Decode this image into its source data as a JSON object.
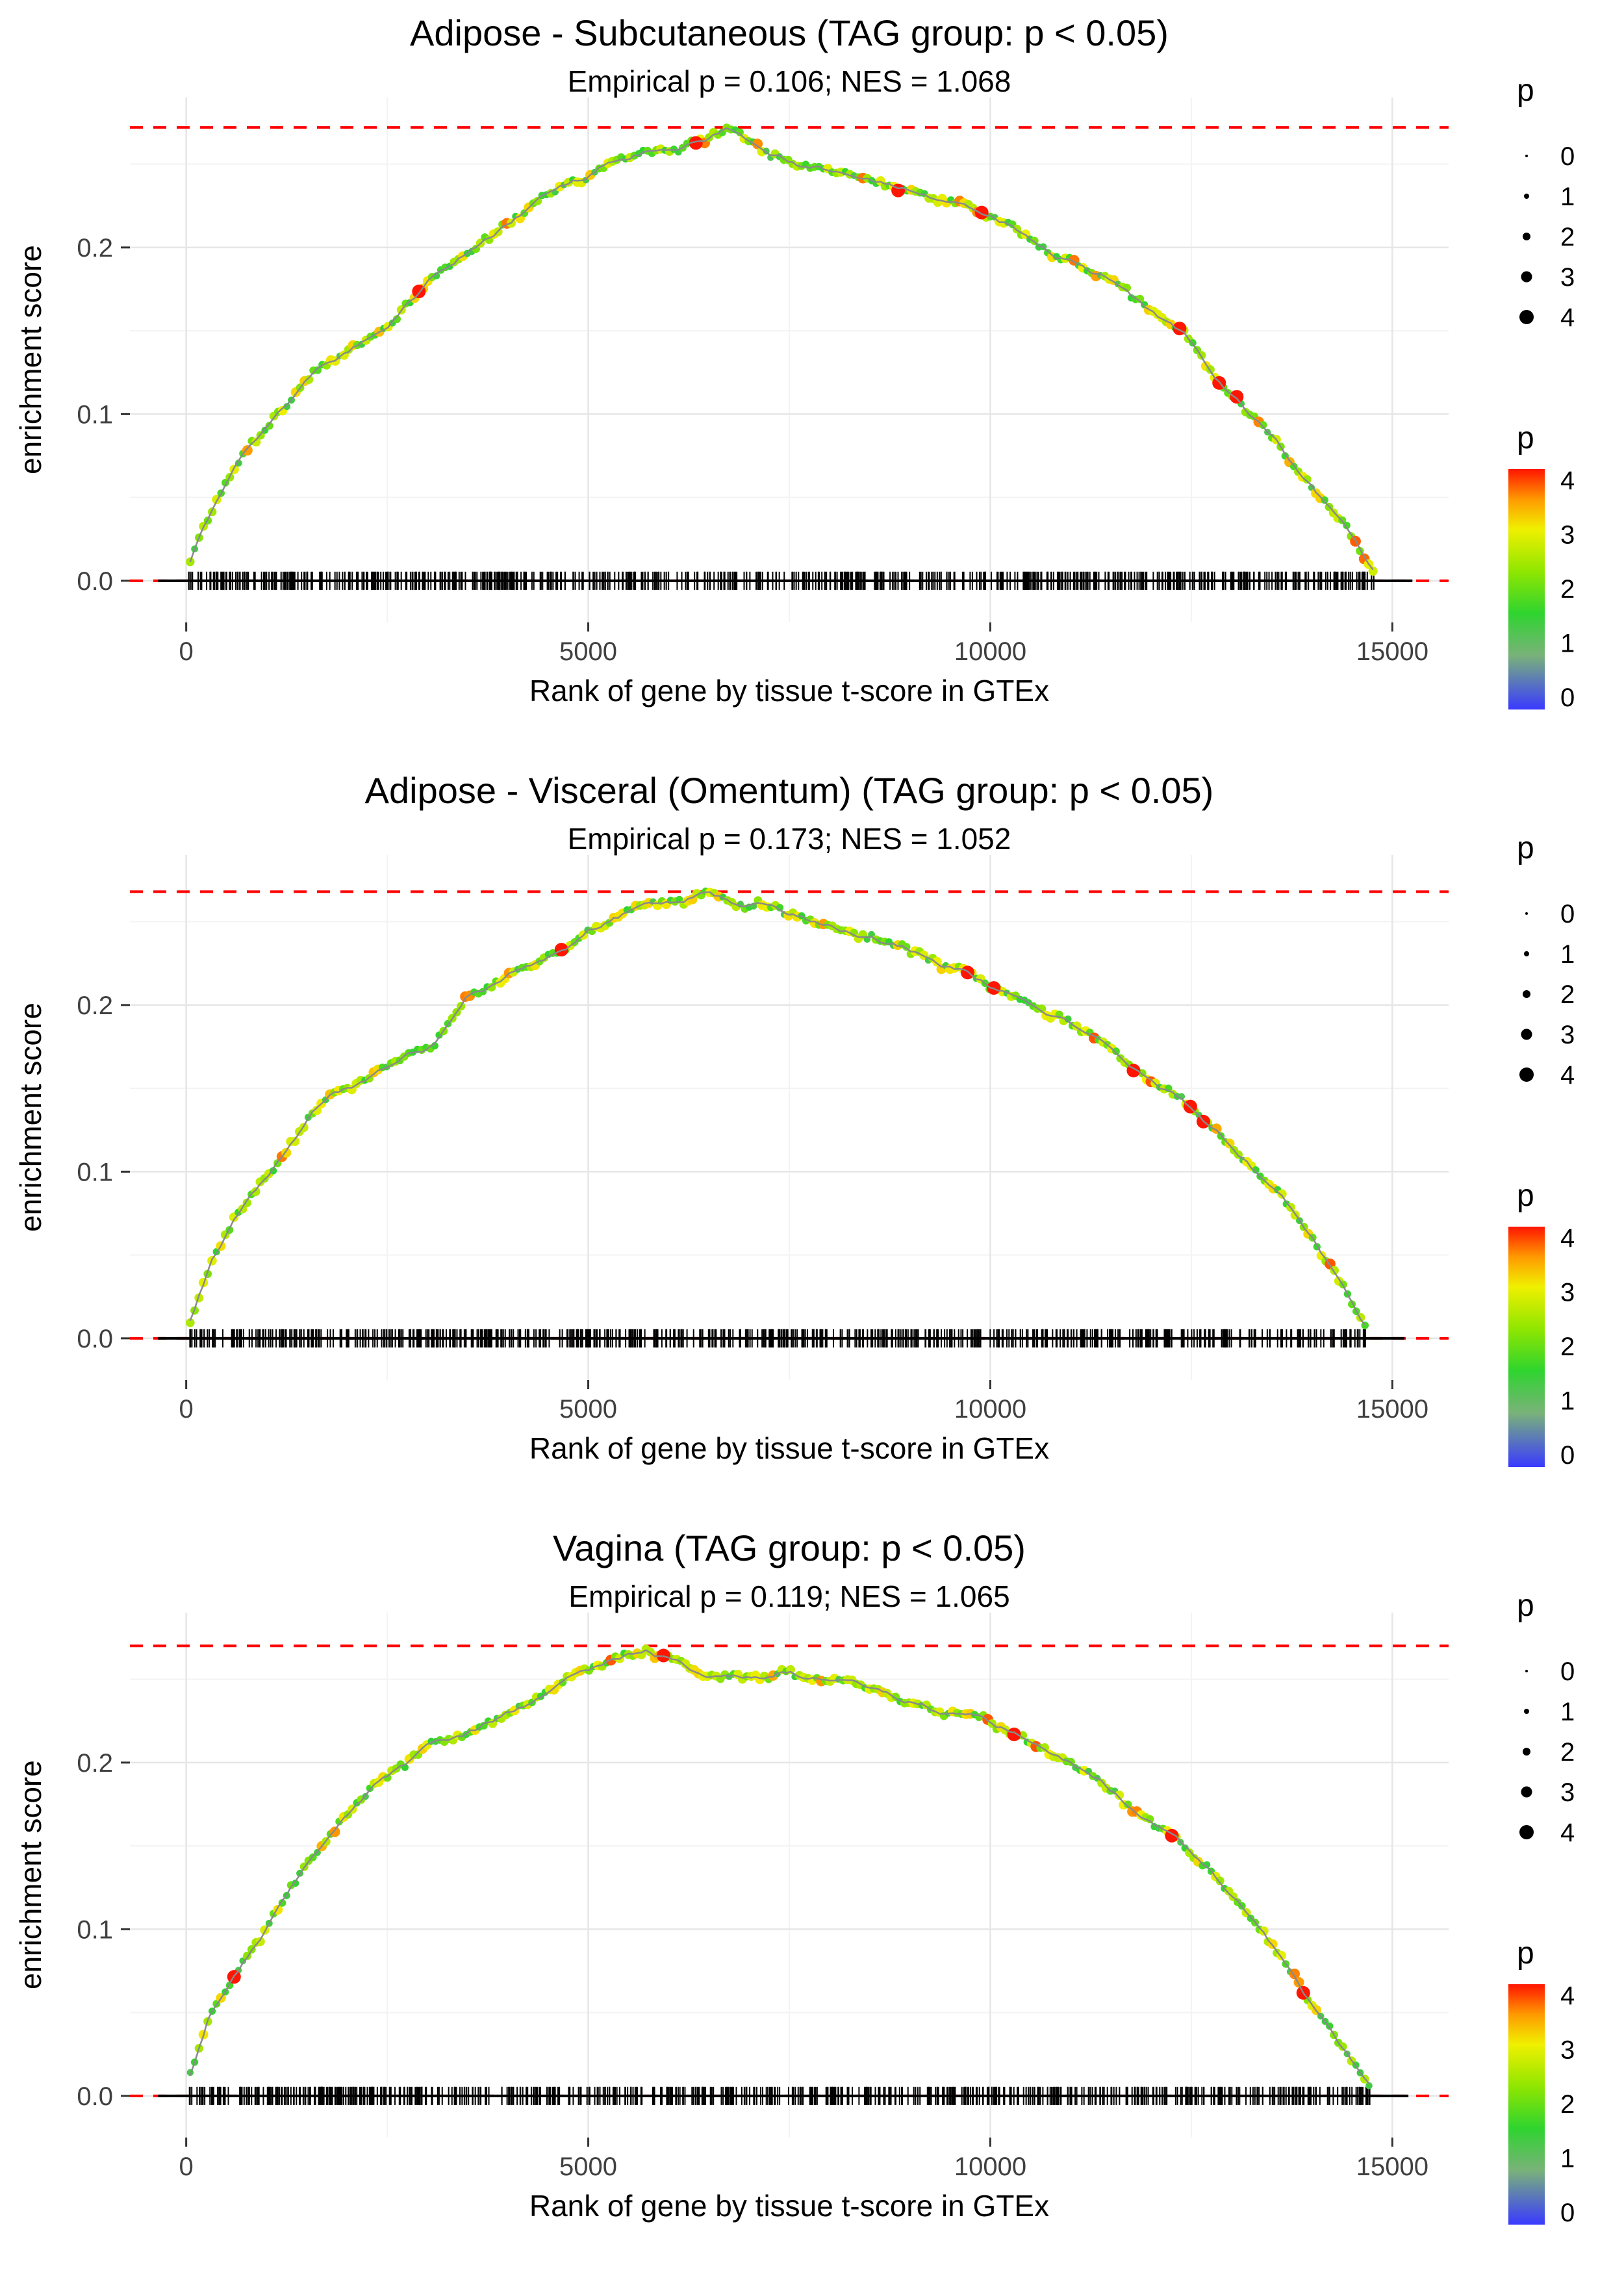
{
  "style": {
    "background": "#ffffff",
    "grid_major": "#e6e6e6",
    "grid_minor": "#f3f3f3",
    "axis_text_color": "#404040",
    "axis_title_color": "#000000",
    "dashed_line_color": "#ff0000",
    "zero_line_color": "#000000",
    "rug_color": "#000000",
    "curve_line_color": "#8a8a8a",
    "legend_dot_color": "#000000",
    "colormap": [
      [
        0,
        "#3a3aff"
      ],
      [
        0.9,
        "#79b279"
      ],
      [
        1.6,
        "#2fd42f"
      ],
      [
        2.3,
        "#90e600"
      ],
      [
        3.0,
        "#f0f000"
      ],
      [
        3.5,
        "#ff9900"
      ],
      [
        4,
        "#ff1500"
      ]
    ]
  },
  "chart_data": [
    {
      "type": "scatter",
      "title": "Adipose - Subcutaneous (TAG group: p < 0.05)",
      "subtitle": "Empirical p = 0.106; NES = 1.068",
      "xlabel": "Rank of gene by tissue t-score in GTEx",
      "ylabel": "enrichment score",
      "xlim": [
        -700,
        15700
      ],
      "ylim": [
        -0.025,
        0.29
      ],
      "xticks": [
        0,
        5000,
        10000,
        15000
      ],
      "xtick_labels": [
        "0",
        "5000",
        "10000",
        "15000"
      ],
      "xticks_minor": [
        2500,
        7500,
        12500
      ],
      "yticks": [
        0.0,
        0.1,
        0.2
      ],
      "ytick_labels": [
        "0.0",
        "0.1",
        "0.2"
      ],
      "yticks_minor": [
        0.05,
        0.15,
        0.25
      ],
      "max_es_line": 0.272,
      "zero_line": 0.0,
      "x_range": [
        0,
        14800
      ],
      "n_points": 270,
      "n_rug": 680,
      "seed": 11,
      "curve_keypoints": [
        [
          0,
          0.005
        ],
        [
          200,
          0.03
        ],
        [
          400,
          0.05
        ],
        [
          700,
          0.075
        ],
        [
          1000,
          0.09
        ],
        [
          1300,
          0.105
        ],
        [
          1600,
          0.125
        ],
        [
          1900,
          0.135
        ],
        [
          2200,
          0.145
        ],
        [
          2500,
          0.155
        ],
        [
          2800,
          0.17
        ],
        [
          3100,
          0.185
        ],
        [
          3400,
          0.195
        ],
        [
          3700,
          0.205
        ],
        [
          4000,
          0.215
        ],
        [
          4300,
          0.225
        ],
        [
          4600,
          0.235
        ],
        [
          4900,
          0.24
        ],
        [
          5200,
          0.25
        ],
        [
          5500,
          0.255
        ],
        [
          5800,
          0.26
        ],
        [
          6100,
          0.262
        ],
        [
          6400,
          0.268
        ],
        [
          6700,
          0.272
        ],
        [
          7000,
          0.265
        ],
        [
          7300,
          0.258
        ],
        [
          7600,
          0.252
        ],
        [
          8000,
          0.248
        ],
        [
          8400,
          0.242
        ],
        [
          8800,
          0.238
        ],
        [
          9200,
          0.23
        ],
        [
          9600,
          0.226
        ],
        [
          10000,
          0.22
        ],
        [
          10400,
          0.21
        ],
        [
          10800,
          0.198
        ],
        [
          11200,
          0.188
        ],
        [
          11600,
          0.178
        ],
        [
          12000,
          0.162
        ],
        [
          12400,
          0.148
        ],
        [
          12800,
          0.122
        ],
        [
          13200,
          0.102
        ],
        [
          13600,
          0.08
        ],
        [
          14000,
          0.055
        ],
        [
          14400,
          0.03
        ],
        [
          14800,
          0.005
        ]
      ],
      "highlight_x": [
        2900,
        6350,
        8850,
        9900,
        12350,
        12850,
        13050
      ],
      "legend_size": {
        "title": "p",
        "labels": [
          "0",
          "1",
          "2",
          "3",
          "4"
        ]
      },
      "legend_color": {
        "title": "p",
        "labels": [
          "4",
          "3",
          "2",
          "1",
          "0"
        ]
      }
    },
    {
      "type": "scatter",
      "title": "Adipose - Visceral (Omentum) (TAG group: p < 0.05)",
      "subtitle": "Empirical p = 0.173; NES = 1.052",
      "xlabel": "Rank of gene by tissue t-score in GTEx",
      "ylabel": "enrichment score",
      "xlim": [
        -700,
        15700
      ],
      "ylim": [
        -0.025,
        0.29
      ],
      "xticks": [
        0,
        5000,
        10000,
        15000
      ],
      "xtick_labels": [
        "0",
        "5000",
        "10000",
        "15000"
      ],
      "xticks_minor": [
        2500,
        7500,
        12500
      ],
      "yticks": [
        0.0,
        0.1,
        0.2
      ],
      "ytick_labels": [
        "0.0",
        "0.1",
        "0.2"
      ],
      "yticks_minor": [
        0.05,
        0.15,
        0.25
      ],
      "max_es_line": 0.268,
      "zero_line": 0.0,
      "x_range": [
        0,
        14700
      ],
      "n_points": 270,
      "n_rug": 680,
      "seed": 23,
      "curve_keypoints": [
        [
          0,
          0.005
        ],
        [
          300,
          0.045
        ],
        [
          600,
          0.07
        ],
        [
          900,
          0.09
        ],
        [
          1200,
          0.11
        ],
        [
          1500,
          0.13
        ],
        [
          1800,
          0.147
        ],
        [
          2100,
          0.152
        ],
        [
          2400,
          0.16
        ],
        [
          2700,
          0.17
        ],
        [
          3000,
          0.175
        ],
        [
          3300,
          0.19
        ],
        [
          3500,
          0.205
        ],
        [
          3800,
          0.21
        ],
        [
          4100,
          0.222
        ],
        [
          4400,
          0.228
        ],
        [
          4700,
          0.232
        ],
        [
          5000,
          0.245
        ],
        [
          5300,
          0.252
        ],
        [
          5600,
          0.258
        ],
        [
          5900,
          0.26
        ],
        [
          6200,
          0.265
        ],
        [
          6500,
          0.268
        ],
        [
          6800,
          0.262
        ],
        [
          7100,
          0.26
        ],
        [
          7400,
          0.256
        ],
        [
          7700,
          0.252
        ],
        [
          8000,
          0.25
        ],
        [
          8400,
          0.244
        ],
        [
          8800,
          0.238
        ],
        [
          9200,
          0.23
        ],
        [
          9600,
          0.222
        ],
        [
          10000,
          0.212
        ],
        [
          10400,
          0.204
        ],
        [
          10800,
          0.192
        ],
        [
          11200,
          0.182
        ],
        [
          11600,
          0.168
        ],
        [
          12000,
          0.156
        ],
        [
          12400,
          0.142
        ],
        [
          12800,
          0.125
        ],
        [
          13200,
          0.105
        ],
        [
          13600,
          0.085
        ],
        [
          14000,
          0.058
        ],
        [
          14400,
          0.03
        ],
        [
          14700,
          0.005
        ]
      ],
      "highlight_x": [
        4650,
        9700,
        10050,
        11800,
        12500,
        12650
      ],
      "legend_size": {
        "title": "p",
        "labels": [
          "0",
          "1",
          "2",
          "3",
          "4"
        ]
      },
      "legend_color": {
        "title": "p",
        "labels": [
          "4",
          "3",
          "2",
          "1",
          "0"
        ]
      }
    },
    {
      "type": "scatter",
      "title": "Vagina (TAG group: p < 0.05)",
      "subtitle": "Empirical p = 0.119; NES = 1.065",
      "xlabel": "Rank of gene by tissue t-score in GTEx",
      "ylabel": "enrichment score",
      "xlim": [
        -700,
        15700
      ],
      "ylim": [
        -0.025,
        0.29
      ],
      "xticks": [
        0,
        5000,
        10000,
        15000
      ],
      "xtick_labels": [
        "0",
        "5000",
        "10000",
        "15000"
      ],
      "xticks_minor": [
        2500,
        7500,
        12500
      ],
      "yticks": [
        0.0,
        0.1,
        0.2
      ],
      "ytick_labels": [
        "0.0",
        "0.1",
        "0.2"
      ],
      "yticks_minor": [
        0.05,
        0.15,
        0.25
      ],
      "max_es_line": 0.27,
      "zero_line": 0.0,
      "x_range": [
        0,
        14750
      ],
      "n_points": 270,
      "n_rug": 680,
      "seed": 37,
      "curve_keypoints": [
        [
          0,
          0.005
        ],
        [
          300,
          0.05
        ],
        [
          600,
          0.072
        ],
        [
          900,
          0.092
        ],
        [
          1200,
          0.12
        ],
        [
          1500,
          0.14
        ],
        [
          1800,
          0.16
        ],
        [
          2100,
          0.175
        ],
        [
          2400,
          0.188
        ],
        [
          2700,
          0.198
        ],
        [
          3000,
          0.208
        ],
        [
          3300,
          0.215
        ],
        [
          3600,
          0.22
        ],
        [
          3900,
          0.228
        ],
        [
          4200,
          0.235
        ],
        [
          4500,
          0.243
        ],
        [
          4800,
          0.25
        ],
        [
          5100,
          0.256
        ],
        [
          5400,
          0.262
        ],
        [
          5700,
          0.268
        ],
        [
          6000,
          0.262
        ],
        [
          6300,
          0.256
        ],
        [
          6600,
          0.252
        ],
        [
          6900,
          0.25
        ],
        [
          7200,
          0.252
        ],
        [
          7500,
          0.256
        ],
        [
          7800,
          0.252
        ],
        [
          8100,
          0.248
        ],
        [
          8400,
          0.245
        ],
        [
          8700,
          0.242
        ],
        [
          9000,
          0.238
        ],
        [
          9300,
          0.232
        ],
        [
          9600,
          0.228
        ],
        [
          10000,
          0.224
        ],
        [
          10300,
          0.218
        ],
        [
          10600,
          0.21
        ],
        [
          11000,
          0.198
        ],
        [
          11400,
          0.188
        ],
        [
          11800,
          0.172
        ],
        [
          12200,
          0.158
        ],
        [
          12600,
          0.14
        ],
        [
          13000,
          0.12
        ],
        [
          13400,
          0.098
        ],
        [
          13800,
          0.068
        ],
        [
          14200,
          0.04
        ],
        [
          14600,
          0.012
        ],
        [
          14750,
          0.004
        ]
      ],
      "highlight_x": [
        600,
        5950,
        10300,
        12250,
        13900
      ],
      "legend_size": {
        "title": "p",
        "labels": [
          "0",
          "1",
          "2",
          "3",
          "4"
        ]
      },
      "legend_color": {
        "title": "p",
        "labels": [
          "4",
          "3",
          "2",
          "1",
          "0"
        ]
      }
    }
  ]
}
